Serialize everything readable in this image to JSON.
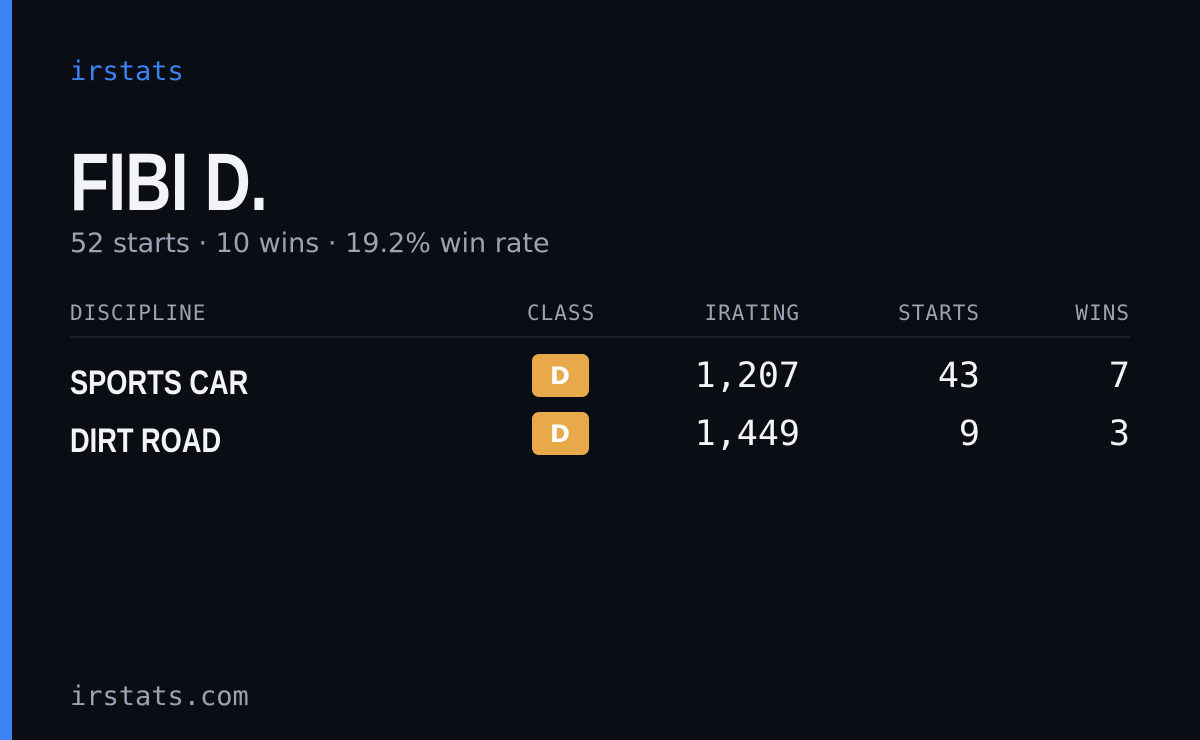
{
  "brand": "irstats",
  "driver": {
    "name": "FIBI D.",
    "summary": "52 starts · 10 wins · 19.2% win rate"
  },
  "table": {
    "headers": [
      "DISCIPLINE",
      "CLASS",
      "IRATING",
      "STARTS",
      "WINS"
    ],
    "rows": [
      [
        "SPORTS CAR",
        "D",
        "1,207",
        43,
        7
      ],
      [
        "DIRT ROAD",
        "D",
        "1,449",
        9,
        3
      ]
    ]
  },
  "footer": "irstats.com"
}
